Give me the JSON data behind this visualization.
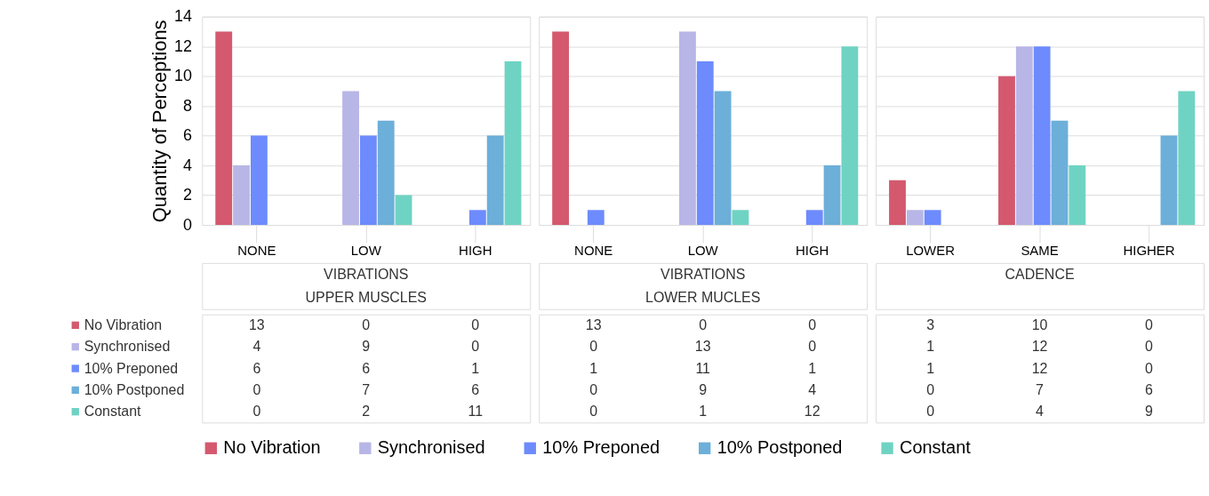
{
  "chart_data": [
    {
      "type": "bar",
      "ylabel": "Quantity of Perceptions",
      "categories": [
        "NONE",
        "LOW",
        "HIGH"
      ],
      "annotations": [
        "VIBRATIONS",
        "UPPER MUSCLES"
      ],
      "ylim": [
        0,
        14
      ],
      "yticks": [
        0,
        2,
        4,
        6,
        8,
        10,
        12,
        14
      ],
      "grid": "y",
      "data_labels": true,
      "legend": "bottom",
      "series": [
        {
          "name": "No Vibration",
          "color": "#d4596f",
          "values": [
            13,
            0,
            0
          ]
        },
        {
          "name": "Synchronised",
          "color": "#b8b6e6",
          "values": [
            4,
            9,
            0
          ]
        },
        {
          "name": "10% Preponed",
          "color": "#6d8bfd",
          "values": [
            6,
            6,
            1
          ]
        },
        {
          "name": "10% Postponed",
          "color": "#6cafd9",
          "values": [
            0,
            7,
            6
          ]
        },
        {
          "name": "Constant",
          "color": "#6fd3c3",
          "values": [
            0,
            2,
            11
          ]
        }
      ]
    },
    {
      "type": "bar",
      "categories": [
        "NONE",
        "LOW",
        "HIGH"
      ],
      "annotations": [
        "VIBRATIONS",
        "LOWER MUCLES"
      ],
      "ylim": [
        0,
        14
      ],
      "yticks": [
        0,
        2,
        4,
        6,
        8,
        10,
        12,
        14
      ],
      "grid": "y",
      "data_labels": true,
      "tick_labels": "x",
      "legend": "bottom",
      "series": [
        {
          "name": "No Vibration",
          "color": "#d4596f",
          "values": [
            13,
            0,
            0
          ]
        },
        {
          "name": "Synchronised",
          "color": "#b8b6e6",
          "values": [
            0,
            13,
            0
          ]
        },
        {
          "name": "10% Preponed",
          "color": "#6d8bfd",
          "values": [
            1,
            11,
            1
          ]
        },
        {
          "name": "10% Postponed",
          "color": "#6cafd9",
          "values": [
            0,
            9,
            4
          ]
        },
        {
          "name": "Constant",
          "color": "#6fd3c3",
          "values": [
            0,
            1,
            12
          ]
        }
      ]
    },
    {
      "type": "bar",
      "categories": [
        "LOWER",
        "SAME",
        "HIGHER"
      ],
      "annotations": [
        "CADENCE"
      ],
      "ylim": [
        0,
        14
      ],
      "yticks": [
        0,
        2,
        4,
        6,
        8,
        10,
        12,
        14
      ],
      "grid": "y",
      "data_labels": true,
      "tick_labels": "x",
      "legend": "bottom",
      "series": [
        {
          "name": "No Vibration",
          "color": "#d4596f",
          "values": [
            3,
            10,
            0
          ]
        },
        {
          "name": "Synchronised",
          "color": "#b8b6e6",
          "values": [
            1,
            12,
            0
          ]
        },
        {
          "name": "10% Preponed",
          "color": "#6d8bfd",
          "values": [
            1,
            12,
            0
          ]
        },
        {
          "name": "10% Postponed",
          "color": "#6cafd9",
          "values": [
            0,
            7,
            6
          ]
        },
        {
          "name": "Constant",
          "color": "#6fd3c3",
          "values": [
            0,
            4,
            9
          ]
        }
      ]
    }
  ]
}
